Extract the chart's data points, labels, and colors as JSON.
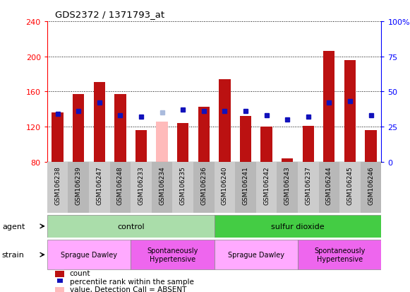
{
  "title": "GDS2372 / 1371793_at",
  "samples": [
    "GSM106238",
    "GSM106239",
    "GSM106247",
    "GSM106248",
    "GSM106233",
    "GSM106234",
    "GSM106235",
    "GSM106236",
    "GSM106240",
    "GSM106241",
    "GSM106242",
    "GSM106243",
    "GSM106237",
    "GSM106244",
    "GSM106245",
    "GSM106246"
  ],
  "count_values": [
    136,
    157,
    171,
    157,
    116,
    126,
    124,
    143,
    174,
    132,
    120,
    84,
    121,
    206,
    196,
    116
  ],
  "rank_values": [
    34,
    36,
    42,
    33,
    32,
    35,
    37,
    36,
    36,
    36,
    33,
    30,
    32,
    42,
    43,
    33
  ],
  "count_absent": [
    false,
    false,
    false,
    false,
    false,
    true,
    false,
    false,
    false,
    false,
    false,
    false,
    false,
    false,
    false,
    false
  ],
  "rank_absent": [
    false,
    false,
    false,
    false,
    false,
    true,
    false,
    false,
    false,
    false,
    false,
    false,
    false,
    false,
    false,
    false
  ],
  "ylim_left": [
    80,
    240
  ],
  "ylim_right": [
    0,
    100
  ],
  "yticks_left": [
    80,
    120,
    160,
    200,
    240
  ],
  "yticks_right": [
    0,
    25,
    50,
    75,
    100
  ],
  "left_tick_labels": [
    "80",
    "120",
    "160",
    "200",
    "240"
  ],
  "right_tick_labels": [
    "0",
    "25",
    "50",
    "75",
    "100%"
  ],
  "agent_groups": [
    {
      "label": "control",
      "start": 0,
      "end": 8,
      "color": "#aaddaa"
    },
    {
      "label": "sulfur dioxide",
      "start": 8,
      "end": 16,
      "color": "#44cc44"
    }
  ],
  "strain_groups": [
    {
      "label": "Sprague Dawley",
      "start": 0,
      "end": 4,
      "color": "#ffaaff"
    },
    {
      "label": "Spontaneously\nHypertensive",
      "start": 4,
      "end": 8,
      "color": "#ee66ee"
    },
    {
      "label": "Sprague Dawley",
      "start": 8,
      "end": 12,
      "color": "#ffaaff"
    },
    {
      "label": "Spontaneously\nHypertensive",
      "start": 12,
      "end": 16,
      "color": "#ee66ee"
    }
  ],
  "bar_width": 0.55,
  "count_color": "#bb1111",
  "count_absent_color": "#ffbbbb",
  "rank_color": "#1111bb",
  "rank_absent_color": "#aabbdd",
  "plot_bg": "#FFFFFF",
  "xtick_bg_even": "#cccccc",
  "xtick_bg_odd": "#bbbbbb"
}
